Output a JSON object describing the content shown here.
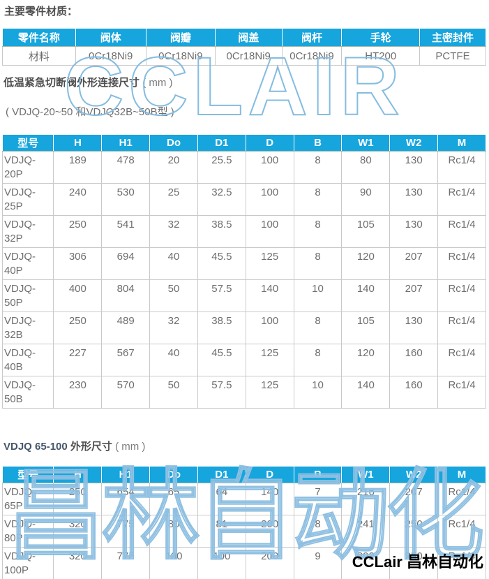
{
  "page": {
    "materials_heading": "主要零件材质：",
    "section1": {
      "title_main": "低温紧急切断阀外形连接尺寸",
      "title_unit": "( mm )",
      "subtitle": "( VDJQ-20~50 和VDJQ32B~50B型 )"
    },
    "section2": {
      "title_model_range": "VDJQ 65-100",
      "title_rest": " 外形尺寸 ",
      "title_unit": "( mm )"
    }
  },
  "colors": {
    "header_blue": "#16a5dd",
    "table_border": "#c9c9c9",
    "cell_text": "#6e6e6e",
    "watermark_outline": "#85bce0",
    "logo_black": "#000000"
  },
  "materials_table": {
    "headers": [
      "零件名称",
      "阀体",
      "阀瓣",
      "阀盖",
      "阀杆",
      "手轮",
      "主密封件"
    ],
    "rows": [
      [
        "材料",
        "0Cr18Ni9",
        "0Cr18Ni9",
        "0Cr18Ni9",
        "0Cr18Ni9",
        "HT200",
        "PCTFE"
      ]
    ]
  },
  "dims_table1": {
    "headers": [
      "型号",
      "H",
      "H1",
      "Do",
      "D1",
      "D",
      "B",
      "W1",
      "W2",
      "M"
    ],
    "rows": [
      [
        "VDJQ-20P",
        "189",
        "478",
        "20",
        "25.5",
        "100",
        "8",
        "80",
        "130",
        "Rc1/4"
      ],
      [
        "VDJQ-25P",
        "240",
        "530",
        "25",
        "32.5",
        "100",
        "8",
        "90",
        "130",
        "Rc1/4"
      ],
      [
        "VDJQ-32P",
        "250",
        "541",
        "32",
        "38.5",
        "100",
        "8",
        "105",
        "130",
        "Rc1/4"
      ],
      [
        "VDJQ-40P",
        "306",
        "694",
        "40",
        "45.5",
        "125",
        "8",
        "120",
        "207",
        "Rc1/4"
      ],
      [
        "VDJQ-50P",
        "400",
        "804",
        "50",
        "57.5",
        "140",
        "10",
        "140",
        "207",
        "Rc1/4"
      ],
      [
        "VDJQ-32B",
        "250",
        "489",
        "32",
        "38.5",
        "100",
        "8",
        "105",
        "130",
        "Rc1/4"
      ],
      [
        "VDJQ-40B",
        "227",
        "567",
        "40",
        "45.5",
        "125",
        "8",
        "120",
        "160",
        "Rc1/4"
      ],
      [
        "VDJQ-50B",
        "230",
        "570",
        "50",
        "57.5",
        "125",
        "10",
        "140",
        "160",
        "Rc1/4"
      ]
    ]
  },
  "dims_table2": {
    "headers": [
      "型号",
      "H",
      "H1",
      "Do",
      "D1",
      "D",
      "B",
      "W1",
      "W2",
      "M"
    ],
    "rows": [
      [
        "VDJQ-65P",
        "250",
        "654",
        "65",
        "64",
        "140",
        "7",
        "216",
        "207",
        "Rc1/4"
      ],
      [
        "VDJQ-80P",
        "320",
        "775",
        "80",
        "81",
        "200",
        "8",
        "241",
        "250",
        "Rc1/4"
      ],
      [
        "VDJQ-100P",
        "320",
        "775",
        "100",
        "100",
        "200",
        "9",
        "292",
        "250",
        "Rc1/4"
      ]
    ]
  },
  "watermarks": {
    "big_top": "CCLAIR",
    "big_bottom": "昌林自动化",
    "logo_text": "CCLair 昌林自动化"
  }
}
